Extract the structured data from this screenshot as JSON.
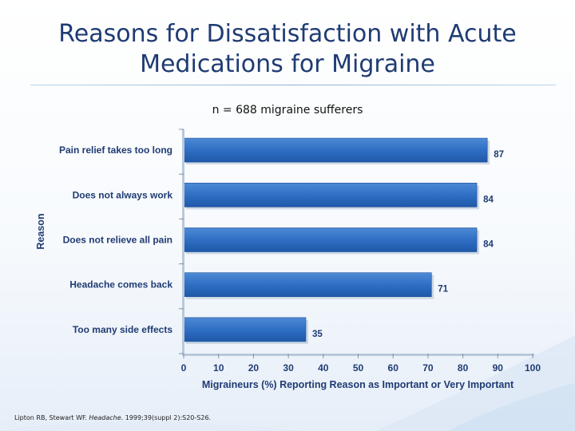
{
  "title_line1": "Reasons for Dissatisfaction with Acute",
  "title_line2": "Medications for Migraine",
  "chart_data": {
    "type": "bar",
    "orientation": "horizontal",
    "subtitle": "n = 688 migraine sufferers",
    "categories": [
      "Pain relief takes too long",
      "Does not always work",
      "Does not relieve all pain",
      "Headache comes back",
      "Too many side effects"
    ],
    "values": [
      87,
      84,
      84,
      71,
      35
    ],
    "value_labels": [
      "87",
      "84",
      "84",
      "71",
      "35"
    ],
    "xlabel": "Migraineurs (%) Reporting Reason as Important or Very Important",
    "ylabel": "Reason",
    "xlim": [
      0,
      100
    ],
    "xticks": [
      "0",
      "10",
      "20",
      "30",
      "40",
      "50",
      "60",
      "70",
      "80",
      "90",
      "100"
    ],
    "grid": false,
    "legend": "none",
    "bar_color": "#2f6fc4"
  },
  "footnote": {
    "prefix": "Lipton RB, Stewart WF. ",
    "journal": "Headache",
    "suffix": ". 1999;39(suppl 2):S20-S26."
  }
}
